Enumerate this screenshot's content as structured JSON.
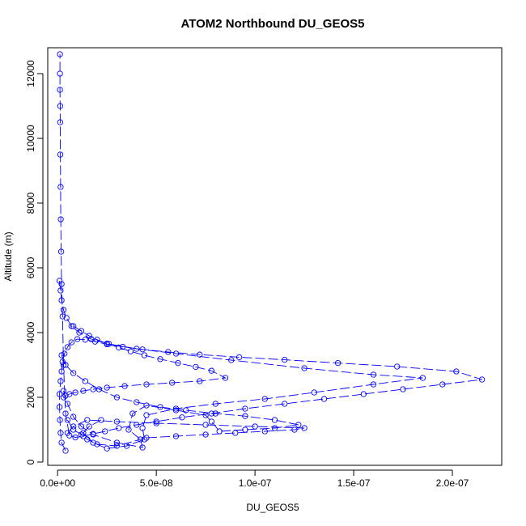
{
  "chart_data": {
    "type": "line",
    "title": "ATOM2 Northbound DU_GEOS5",
    "xlabel": "DU_GEOS5",
    "ylabel": "Altitude (m)",
    "xlim": [
      -5e-09,
      2.25e-07
    ],
    "ylim": [
      -100,
      12800
    ],
    "xticks": [
      0,
      5e-08,
      1e-07,
      1.5e-07,
      2e-07
    ],
    "xtick_labels": [
      "0.0e+00",
      "5.0e-08",
      "1.0e-07",
      "1.5e-07",
      "2.0e-07"
    ],
    "yticks": [
      0,
      2000,
      4000,
      6000,
      8000,
      10000,
      12000
    ],
    "ytick_labels": [
      "0",
      "2000",
      "4000",
      "6000",
      "8000",
      "10000",
      "12000"
    ],
    "grid": false,
    "marker": "open-circle",
    "line_style": "dashed",
    "color": "#0000ff",
    "series": [
      {
        "x": [
          4e-09,
          2e-09,
          1.5e-09,
          1.2e-09,
          1e-09,
          1e-09,
          1.5e-09,
          2e-09,
          2.5e-09,
          3.5e-09,
          5e-09,
          7e-09,
          1e-08,
          1.4e-08,
          1.9e-08,
          2.5e-08,
          3.3e-08,
          4.3e-08,
          5.6e-08,
          7.2e-08,
          9.2e-08,
          1.15e-07,
          1.42e-07,
          1.72e-07,
          2.02e-07,
          2.15e-07,
          1.95e-07,
          1.75e-07,
          1.55e-07,
          1.35e-07,
          1.15e-07,
          9.5e-08,
          7.8e-08,
          6.3e-08,
          5e-08,
          4e-08,
          3.1e-08,
          2.4e-08,
          1.8e-08,
          1.3e-08,
          9e-09,
          6e-09,
          4e-09,
          3e-09,
          2.5e-09,
          2e-09,
          1.8e-09,
          1.6e-09,
          1.5e-09,
          1.4e-09,
          1.3e-09,
          1.3e-09,
          1.2e-09,
          1.2e-09,
          1.2e-09
        ],
        "y": [
          350,
          600,
          900,
          1300,
          1700,
          2100,
          2500,
          2800,
          3100,
          3350,
          3550,
          3700,
          3800,
          3780,
          3720,
          3640,
          3560,
          3480,
          3400,
          3320,
          3240,
          3160,
          3060,
          2950,
          2800,
          2550,
          2400,
          2250,
          2100,
          1950,
          1800,
          1650,
          1500,
          1380,
          1250,
          1150,
          1050,
          950,
          870,
          800,
          760,
          820,
          1500,
          3000,
          4500,
          5500,
          6500,
          7500,
          8500,
          9500,
          10500,
          11000,
          11500,
          12000,
          12600
        ]
      },
      {
        "x": [
          1e-09,
          1.5e-09,
          2e-09,
          3e-09,
          4.5e-09,
          7e-09,
          1.1e-08,
          1.7e-08,
          2.6e-08,
          4e-08,
          6e-08,
          8.8e-08,
          1.25e-07,
          1.6e-07,
          1.85e-07,
          1.6e-07,
          1.3e-07,
          1.05e-07,
          8e-08,
          6e-08,
          4.5e-08,
          4.3e-08,
          4.4e-08,
          3.5e-08,
          2.5e-08,
          1.8e-08,
          1.3e-08,
          1.6e-08,
          2.2e-08
        ],
        "y": [
          5600,
          5300,
          5000,
          4700,
          4450,
          4200,
          4000,
          3800,
          3650,
          3500,
          3350,
          3150,
          2900,
          2700,
          2600,
          2400,
          2150,
          1950,
          1800,
          1650,
          1450,
          1050,
          700,
          500,
          420,
          600,
          900,
          1100,
          1300
        ]
      },
      {
        "x": [
          2e-09,
          4e-09,
          8e-09,
          1.4e-08,
          2.1e-08,
          3e-08,
          4e-08,
          5.2e-08,
          6.5e-08,
          8e-08,
          9.5e-08,
          1.1e-07,
          1.22e-07,
          1.1e-07,
          9.5e-08,
          8.2e-08,
          7.8e-08,
          7.5e-08,
          6e-08,
          4.5e-08,
          3.8e-08,
          3.6e-08,
          4.2e-08,
          4.3e-08,
          3e-08,
          1.8e-08,
          1.2e-08,
          8e-09,
          5e-09,
          3e-09
        ],
        "y": [
          3300,
          3000,
          2750,
          2500,
          2250,
          2000,
          1850,
          1700,
          1600,
          1500,
          1420,
          1300,
          1150,
          1050,
          1000,
          950,
          1250,
          1450,
          1600,
          1750,
          1500,
          1000,
          700,
          450,
          600,
          850,
          1100,
          1400,
          1800,
          2200
        ]
      },
      {
        "x": [
          8e-09,
          1.2e-08,
          1.6e-08,
          2e-08,
          2.5e-08,
          3.1e-08,
          3.7e-08,
          4.4e-08,
          5.2e-08,
          6.1e-08,
          7e-08,
          7.8e-08,
          8.5e-08,
          7.2e-08,
          5.8e-08,
          4.5e-08,
          3.4e-08,
          2.5e-08,
          1.8e-08,
          1.3e-08,
          9e-09,
          6e-09,
          4e-09,
          3e-09
        ],
        "y": [
          4200,
          4050,
          3900,
          3780,
          3660,
          3540,
          3420,
          3300,
          3180,
          3060,
          2940,
          2820,
          2600,
          2500,
          2450,
          2400,
          2350,
          2300,
          2250,
          2200,
          2150,
          2100,
          2050,
          2000
        ]
      },
      {
        "x": [
          5e-09,
          8e-09,
          1.2e-08,
          1.5e-08,
          2e-08,
          3e-08,
          4.5e-08,
          6e-08,
          7.5e-08,
          9e-08,
          1.05e-07,
          1.2e-07,
          1.25e-07,
          1e-07,
          7.5e-08,
          5e-08,
          3e-08,
          1.5e-08,
          8e-09,
          5e-09
        ],
        "y": [
          1300,
          1000,
          850,
          700,
          550,
          500,
          750,
          800,
          850,
          900,
          950,
          1000,
          1050,
          1100,
          1150,
          1200,
          1250,
          1300,
          1100,
          900
        ]
      }
    ]
  }
}
